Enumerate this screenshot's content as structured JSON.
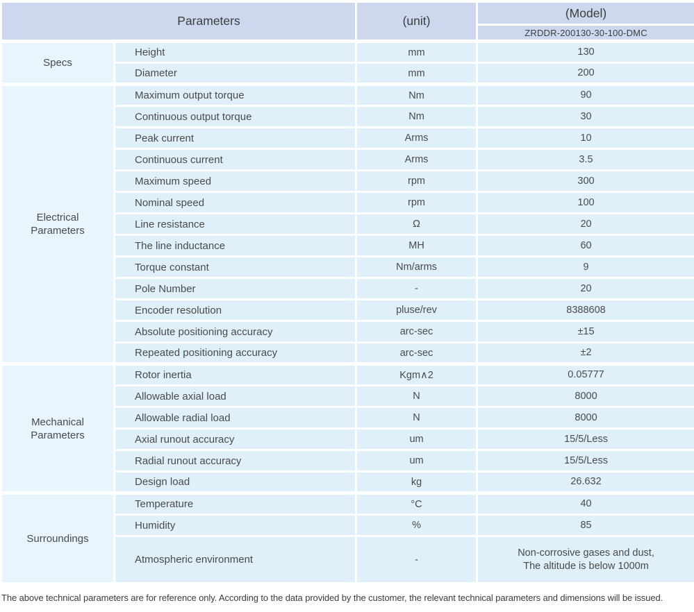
{
  "colors": {
    "header_bg": "#cdd7ed",
    "category_cell_bg": "#e8f5fc",
    "data_cell_bg": "#e0f0fa",
    "grid_lines": "#ffffff",
    "text": "#4a4a4a"
  },
  "table": {
    "header": {
      "parameters_label": "Parameters",
      "unit_label": "(unit)",
      "model_label": "(Model)",
      "model_value": "ZRDDR-200130-30-100-DMC"
    },
    "groups": [
      {
        "category": "Specs",
        "rows": [
          {
            "name": "Height",
            "unit": "mm",
            "value": "130"
          },
          {
            "name": "Diameter",
            "unit": "mm",
            "value": "200"
          }
        ]
      },
      {
        "category": "Electrical\nParameters",
        "rows": [
          {
            "name": "Maximum output torque",
            "unit": "Nm",
            "value": "90"
          },
          {
            "name": "Continuous output torque",
            "unit": "Nm",
            "value": "30"
          },
          {
            "name": "Peak current",
            "unit": "Arms",
            "value": "10"
          },
          {
            "name": "Continuous current",
            "unit": "Arms",
            "value": "3.5"
          },
          {
            "name": "Maximum speed",
            "unit": "rpm",
            "value": "300"
          },
          {
            "name": "Nominal speed",
            "unit": "rpm",
            "value": "100"
          },
          {
            "name": "Line resistance",
            "unit": "Ω",
            "value": "20"
          },
          {
            "name": "The line inductance",
            "unit": "MH",
            "value": "60"
          },
          {
            "name": "Torque constant",
            "unit": "Nm/arms",
            "value": "9"
          },
          {
            "name": "Pole Number",
            "unit": "-",
            "value": "20"
          },
          {
            "name": "Encoder resolution",
            "unit": "pluse/rev",
            "value": "8388608"
          },
          {
            "name": "Absolute positioning accuracy",
            "unit": "arc-sec",
            "value": "±15"
          },
          {
            "name": "Repeated positioning accuracy",
            "unit": "arc-sec",
            "value": "±2"
          }
        ]
      },
      {
        "category": "Mechanical\nParameters",
        "rows": [
          {
            "name": "Rotor inertia",
            "unit": "Kgm∧2",
            "value": "0.05777"
          },
          {
            "name": "Allowable axial load",
            "unit": "N",
            "value": "8000"
          },
          {
            "name": "Allowable radial load",
            "unit": "N",
            "value": "8000"
          },
          {
            "name": "Axial runout accuracy",
            "unit": "um",
            "value": "15/5/Less"
          },
          {
            "name": "Radial runout accuracy",
            "unit": "um",
            "value": "15/5/Less"
          },
          {
            "name": "Design load",
            "unit": "kg",
            "value": "26.632"
          }
        ]
      },
      {
        "category": "Surroundings",
        "rows": [
          {
            "name": "Temperature",
            "unit": "°C",
            "value": "40"
          },
          {
            "name": "Humidity",
            "unit": "%",
            "value": "85"
          },
          {
            "name": "Atmospheric environment",
            "unit": "-",
            "value": "Non-corrosive gases and dust,\nThe altitude is below 1000m"
          }
        ]
      }
    ]
  },
  "footer": {
    "note": "The above technical parameters are for reference only. According to the data provided by the customer, the relevant technical parameters and dimensions will be issued."
  }
}
